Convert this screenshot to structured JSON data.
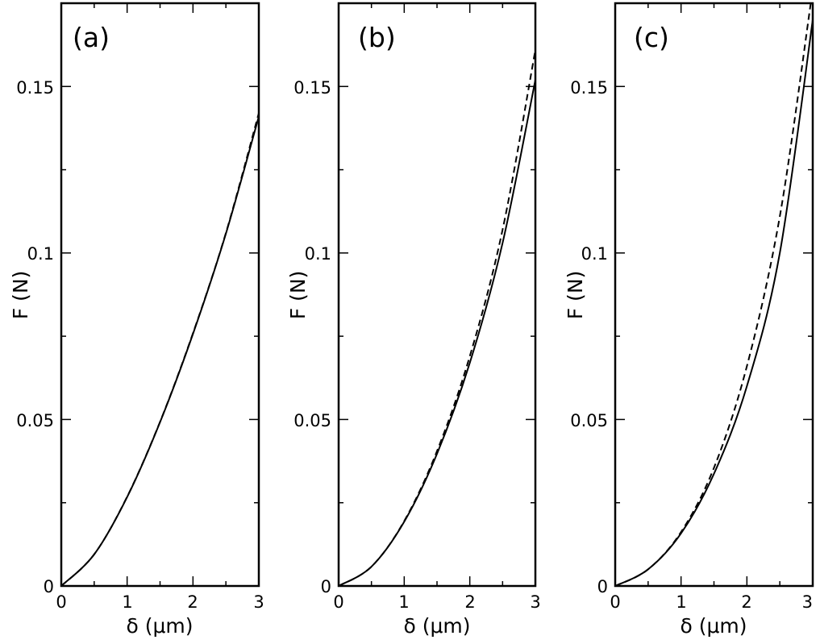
{
  "chart_data": [
    {
      "type": "line",
      "panel_label": "(a)",
      "xlabel": "δ (μm)",
      "ylabel": "F (N)",
      "xlim": [
        0,
        3
      ],
      "ylim": [
        0,
        0.175
      ],
      "x_ticks": [
        0,
        1,
        2,
        3
      ],
      "x_tick_labels": [
        "0",
        "1",
        "2",
        "3"
      ],
      "y_ticks": [
        0,
        0.05,
        0.1,
        0.15
      ],
      "y_tick_labels": [
        "0",
        "0.05",
        "0.1",
        "0.15"
      ],
      "grid": false,
      "series": [
        {
          "style": "solid",
          "x": [
            0,
            0.5,
            1,
            1.5,
            2,
            2.5,
            3
          ],
          "y": [
            0,
            0.0095,
            0.0267,
            0.0492,
            0.0757,
            0.1058,
            0.141
          ]
        },
        {
          "style": "dashed",
          "x": [
            0,
            0.5,
            1,
            1.5,
            2,
            2.5,
            3
          ],
          "y": [
            0,
            0.0095,
            0.0268,
            0.0493,
            0.0759,
            0.106,
            0.142
          ]
        }
      ]
    },
    {
      "type": "line",
      "panel_label": "(b)",
      "xlabel": "δ (μm)",
      "ylabel": "F (N)",
      "xlim": [
        0,
        3
      ],
      "ylim": [
        0,
        0.175
      ],
      "x_ticks": [
        0,
        1,
        2,
        3
      ],
      "x_tick_labels": [
        "0",
        "1",
        "2",
        "3"
      ],
      "y_ticks": [
        0,
        0.05,
        0.1,
        0.15
      ],
      "y_tick_labels": [
        "0",
        "0.05",
        "0.1",
        "0.15"
      ],
      "grid": false,
      "series": [
        {
          "style": "solid",
          "x": [
            0,
            0.5,
            1,
            1.5,
            2,
            2.5,
            3
          ],
          "y": [
            0,
            0.0058,
            0.0193,
            0.0397,
            0.067,
            0.103,
            0.152
          ]
        },
        {
          "style": "dashed",
          "x": [
            0,
            0.5,
            1,
            1.5,
            2,
            2.5,
            3
          ],
          "y": [
            0,
            0.0058,
            0.0195,
            0.0405,
            0.069,
            0.107,
            0.161
          ]
        }
      ]
    },
    {
      "type": "line",
      "panel_label": "(c)",
      "xlabel": "δ (μm)",
      "ylabel": "F (N)",
      "xlim": [
        0,
        3
      ],
      "ylim": [
        0,
        0.175
      ],
      "x_ticks": [
        0,
        1,
        2,
        3
      ],
      "x_tick_labels": [
        "0",
        "1",
        "2",
        "3"
      ],
      "y_ticks": [
        0,
        0.05,
        0.1,
        0.15
      ],
      "y_tick_labels": [
        "0",
        "0.05",
        "0.1",
        "0.15"
      ],
      "grid": false,
      "series": [
        {
          "style": "solid",
          "x": [
            0,
            0.5,
            1,
            1.5,
            2,
            2.5,
            3
          ],
          "y": [
            0,
            0.005,
            0.0158,
            0.0337,
            0.06,
            0.1,
            0.17
          ]
        },
        {
          "style": "dashed",
          "x": [
            0,
            0.5,
            1,
            1.5,
            2,
            2.5,
            2.97
          ],
          "y": [
            0,
            0.005,
            0.0162,
            0.0355,
            0.066,
            0.111,
            0.175
          ]
        }
      ]
    }
  ]
}
